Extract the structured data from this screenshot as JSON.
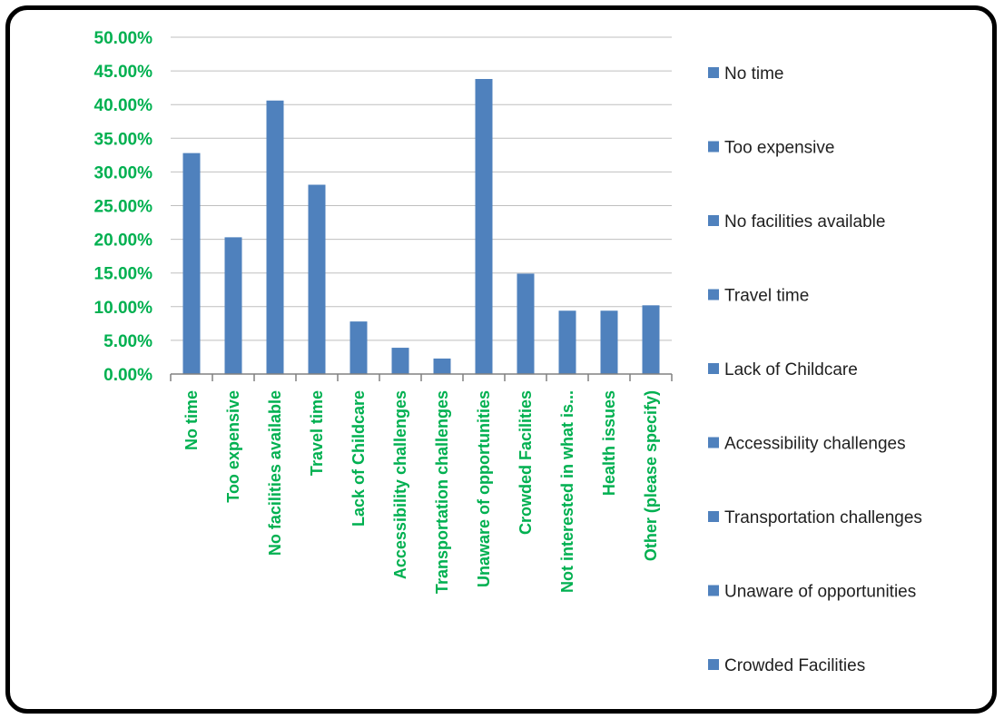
{
  "chart_data": {
    "type": "bar",
    "categories": [
      "No time",
      "Too expensive",
      "No facilities available",
      "Travel time",
      "Lack of Childcare",
      "Accessibility challenges",
      "Transportation challenges",
      "Unaware of opportunities",
      "Crowded Facilities",
      "Not interested in what is...",
      "Health issues",
      "Other (please specify)"
    ],
    "values": [
      32.8,
      20.3,
      40.6,
      28.1,
      7.8,
      3.9,
      2.3,
      43.8,
      14.9,
      9.4,
      9.4,
      10.2
    ],
    "ylim": [
      0,
      50
    ],
    "yticks": [
      "0.00%",
      "5.00%",
      "10.00%",
      "15.00%",
      "20.00%",
      "25.00%",
      "30.00%",
      "35.00%",
      "40.00%",
      "45.00%",
      "50.00%"
    ],
    "grid": true,
    "legend_position": "right",
    "legend": [
      "No time",
      "Too expensive",
      "No facilities available",
      "Travel time",
      "Lack of Childcare",
      "Accessibility challenges",
      "Transportation challenges",
      "Unaware of opportunities",
      "Crowded Facilities"
    ],
    "colors": {
      "bar": "#4F81BD",
      "tick_label": "#00B050",
      "grid": "#BFBFBF",
      "axis": "#808080",
      "frame": "#000000"
    }
  }
}
